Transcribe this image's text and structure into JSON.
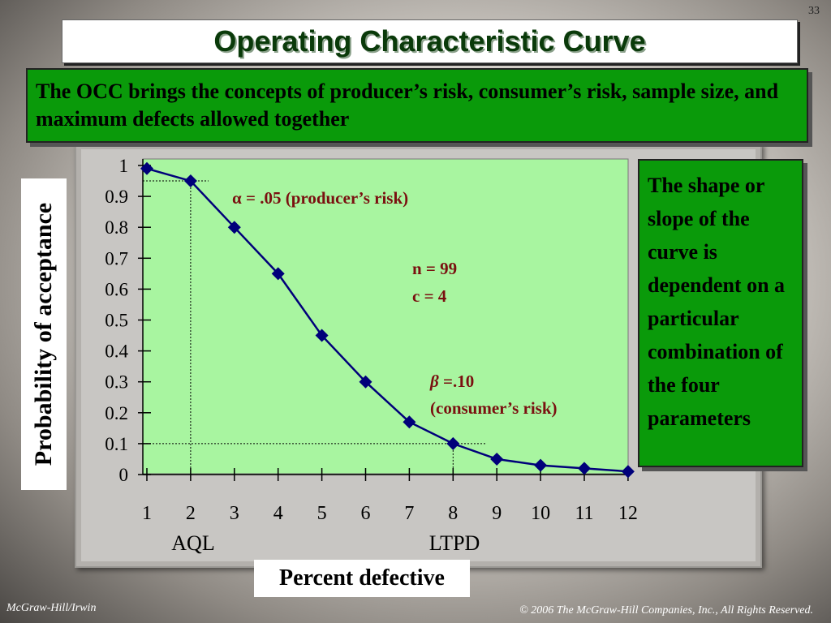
{
  "slide": {
    "number": "33",
    "title": "Operating Characteristic Curve",
    "intro": "The OCC brings the concepts of producer’s risk, consumer’s risk, sample size, and maximum defects allowed together",
    "side_note": "The shape or slope of the curve is dependent on a particular combination of the four parameters",
    "footer_left": "McGraw-Hill/Irwin",
    "footer_right": "© 2006 The McGraw-Hill Companies, Inc., All Rights Reserved."
  },
  "chart_data": {
    "type": "line",
    "title": "",
    "xlabel": "Percent defective",
    "ylabel": "Probability of acceptance",
    "x": [
      1,
      2,
      3,
      4,
      5,
      6,
      7,
      8,
      9,
      10,
      11,
      12
    ],
    "series": [
      {
        "values": [
          0.99,
          0.95,
          0.8,
          0.65,
          0.45,
          0.3,
          0.17,
          0.1,
          0.05,
          0.03,
          0.02,
          0.01
        ]
      }
    ],
    "xticks": [
      "1",
      "2",
      "3",
      "4",
      "5",
      "6",
      "7",
      "8",
      "9",
      "10",
      "11",
      "12"
    ],
    "yticks": [
      "0",
      "0.1",
      "0.2",
      "0.3",
      "0.4",
      "0.5",
      "0.6",
      "0.7",
      "0.8",
      "0.9",
      "1"
    ],
    "xlim": [
      1,
      12
    ],
    "ylim": [
      0,
      1
    ],
    "grid": false,
    "colors": {
      "line": "#00007a",
      "plot_bg": "#a8f5a0"
    },
    "annotations": {
      "alpha": {
        "symbol": "α",
        "text": " = .05 (producer’s risk)"
      },
      "n": "n = 99",
      "c": "c = 4",
      "beta": {
        "symbol": "β",
        "text": " =.10",
        "sub": "(consumer’s risk)"
      },
      "aql": "AQL",
      "ltpd": "LTPD"
    },
    "reference_lines": {
      "aql_x": 2,
      "aql_y": 0.95,
      "ltpd_x": 8,
      "ltpd_y": 0.1
    }
  }
}
